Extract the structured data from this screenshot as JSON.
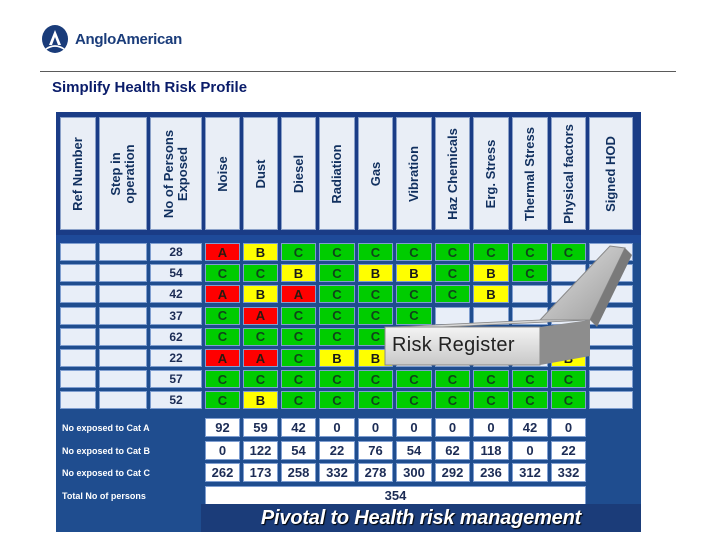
{
  "header": {
    "brand": "AngloAmerican",
    "title": "Simplify Health Risk Profile"
  },
  "table": {
    "columns": [
      "Ref Number",
      "Step in operation",
      "No of Persons Exposed",
      "Noise",
      "Dust",
      "Diesel",
      "Radiation",
      "Gas",
      "Vibration",
      "Haz Chemicals",
      "Erg. Stress",
      "Thermal Stress",
      "Physical factors",
      "Signed HOD"
    ],
    "rows": [
      {
        "persons": "28",
        "ratings": [
          "A",
          "B",
          "C",
          "C",
          "C",
          "C",
          "C",
          "C",
          "C",
          "C"
        ]
      },
      {
        "persons": "54",
        "ratings": [
          "C",
          "C",
          "B",
          "C",
          "B",
          "B",
          "C",
          "B",
          "C",
          ""
        ]
      },
      {
        "persons": "42",
        "ratings": [
          "A",
          "B",
          "A",
          "C",
          "C",
          "C",
          "C",
          "B",
          "",
          ""
        ]
      },
      {
        "persons": "37",
        "ratings": [
          "C",
          "A",
          "C",
          "C",
          "C",
          "C",
          "",
          "",
          "",
          ""
        ]
      },
      {
        "persons": "62",
        "ratings": [
          "C",
          "C",
          "C",
          "C",
          "C",
          "",
          "",
          "",
          "",
          "C"
        ]
      },
      {
        "persons": "22",
        "ratings": [
          "A",
          "A",
          "C",
          "B",
          "B",
          "",
          "",
          "",
          "",
          "B"
        ]
      },
      {
        "persons": "57",
        "ratings": [
          "C",
          "C",
          "C",
          "C",
          "C",
          "C",
          "C",
          "C",
          "C",
          "C"
        ]
      },
      {
        "persons": "52",
        "ratings": [
          "C",
          "B",
          "C",
          "C",
          "C",
          "C",
          "C",
          "C",
          "C",
          "C"
        ]
      }
    ],
    "summary": [
      {
        "label": "No exposed to Cat A",
        "values": [
          "92",
          "59",
          "42",
          "0",
          "0",
          "0",
          "0",
          "0",
          "42",
          "0"
        ]
      },
      {
        "label": "No exposed to Cat B",
        "values": [
          "0",
          "122",
          "54",
          "22",
          "76",
          "54",
          "62",
          "118",
          "0",
          "22"
        ]
      },
      {
        "label": "No exposed to Cat C",
        "values": [
          "262",
          "173",
          "258",
          "332",
          "278",
          "300",
          "292",
          "236",
          "312",
          "332"
        ]
      }
    ],
    "total_label": "Total No of persons",
    "total_value": "354"
  },
  "callout": "Risk Register",
  "banner": "Pivotal to Health risk management",
  "colors": {
    "A": "#ff0000",
    "B": "#ffff00",
    "C": "#00cc00",
    "panel": "#1f4d8f"
  }
}
